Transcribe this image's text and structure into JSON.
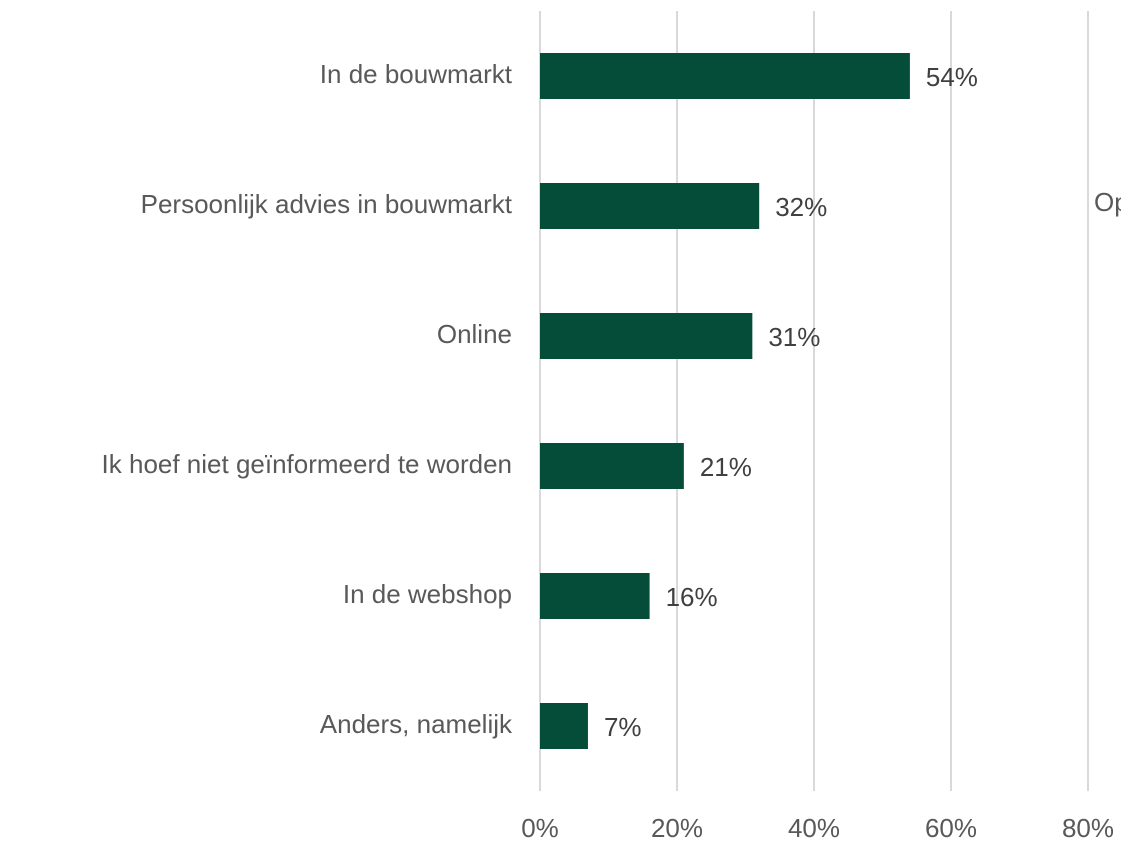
{
  "chart_data": {
    "type": "bar",
    "orientation": "horizontal",
    "categories": [
      "In de bouwmarkt",
      "Persoonlijk advies in bouwmarkt",
      "Online",
      "Ik hoef niet geïnformeerd te worden",
      "In de webshop",
      "Anders, namelijk"
    ],
    "values": [
      54,
      32,
      31,
      21,
      16,
      7
    ],
    "value_labels": [
      "54%",
      "32%",
      "31%",
      "21%",
      "16%",
      "7%"
    ],
    "color": "#054d39",
    "xlim": [
      0,
      80
    ],
    "xticks": [
      {
        "value": 0,
        "label": "0%"
      },
      {
        "value": 20,
        "label": "20%"
      },
      {
        "value": 40,
        "label": "40%"
      },
      {
        "value": 60,
        "label": "60%"
      },
      {
        "value": 80,
        "label": "80%"
      }
    ],
    "grid": true,
    "annotation": "Op"
  }
}
